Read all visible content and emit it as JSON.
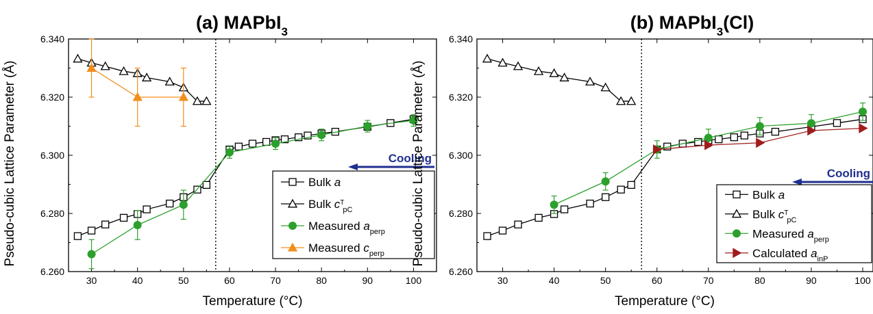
{
  "figure": {
    "panels": [
      {
        "title": "(a) MAPbI",
        "title_sub": "3",
        "title_suffix": "",
        "ylabel": "Pseudo-cubic Lattice Parameter (Å)",
        "xlabel": "Temperature (°C)",
        "cooling_label": "Cooling",
        "legend": [
          {
            "text": "Bulk ",
            "italic": "a",
            "sup": "",
            "sub": ""
          },
          {
            "text": "Bulk ",
            "italic": "c",
            "sup": "T",
            "sub": "pC"
          },
          {
            "text": "Measured ",
            "italic": "a",
            "sup": "",
            "sub": "perp"
          },
          {
            "text": "Measured ",
            "italic": "c",
            "sup": "",
            "sub": "perp"
          }
        ]
      },
      {
        "title": "(b) MAPbI",
        "title_sub": "3",
        "title_suffix": "(Cl)",
        "ylabel": "Pseudo-cubic Lattice Parameter (Å)",
        "xlabel": "Temperature (°C)",
        "cooling_label": "Cooling",
        "legend": [
          {
            "text": "Bulk ",
            "italic": "a",
            "sup": "",
            "sub": ""
          },
          {
            "text": "Bulk ",
            "italic": "c",
            "sup": "T",
            "sub": "pC"
          },
          {
            "text": "Measured ",
            "italic": "a",
            "sup": "",
            "sub": "perp"
          },
          {
            "text": "Calculated ",
            "italic": "a",
            "sup": "",
            "sub": "inP"
          }
        ]
      }
    ]
  },
  "colors": {
    "bulk": "#000000",
    "measured_a": "#2ca02c",
    "measured_c": "#f28e1c",
    "calculated": "#a01c1c",
    "cooling": "#1f2f8f",
    "frame": "#000000"
  },
  "chart_data": [
    {
      "type": "line",
      "xlim": [
        25,
        105
      ],
      "ylim": [
        6.26,
        6.34
      ],
      "xticks": [
        30,
        40,
        50,
        60,
        70,
        80,
        90,
        100
      ],
      "yticks": [
        6.26,
        6.28,
        6.3,
        6.32,
        6.34
      ],
      "ytick_labels": [
        "6.260",
        "6.280",
        "6.300",
        "6.320",
        "6.340"
      ],
      "vline_x": 57,
      "grid": false,
      "legend_position": "bottom-right",
      "series": [
        {
          "name": "Bulk a",
          "marker": "square-open",
          "color": "#000000",
          "x": [
            27,
            30,
            33,
            37,
            40,
            42,
            47,
            50,
            53,
            55,
            60,
            62,
            65,
            68,
            70,
            72,
            75,
            77,
            80,
            83,
            90,
            95,
            100
          ],
          "y": [
            6.2722,
            6.2741,
            6.2762,
            6.2785,
            6.2798,
            6.2814,
            6.2834,
            6.2856,
            6.2882,
            6.2898,
            6.302,
            6.303,
            6.304,
            6.3046,
            6.3052,
            6.3055,
            6.3062,
            6.3068,
            6.3075,
            6.3081,
            6.3098,
            6.3111,
            6.3124
          ]
        },
        {
          "name": "Bulk cTpC",
          "marker": "triangle-open",
          "color": "#000000",
          "x": [
            27,
            30,
            33,
            37,
            40,
            42,
            47,
            50,
            53,
            55
          ],
          "y": [
            6.3332,
            6.3318,
            6.3306,
            6.3289,
            6.3282,
            6.3267,
            6.3253,
            6.3233,
            6.3186,
            6.3186
          ]
        },
        {
          "name": "Measured aperp",
          "marker": "circle-filled",
          "color": "#2ca02c",
          "x": [
            30,
            40,
            50,
            60,
            70,
            80,
            90,
            100
          ],
          "y": [
            6.266,
            6.276,
            6.283,
            6.301,
            6.304,
            6.307,
            6.31,
            6.312
          ],
          "err": [
            0.005,
            0.005,
            0.005,
            0.002,
            0.002,
            0.002,
            0.002,
            0.002
          ]
        },
        {
          "name": "Measured cperp",
          "marker": "triangle-filled",
          "color": "#f28e1c",
          "x": [
            30,
            40,
            50
          ],
          "y": [
            6.33,
            6.32,
            6.32
          ],
          "err": [
            0.01,
            0.01,
            0.01
          ]
        }
      ]
    },
    {
      "type": "line",
      "xlim": [
        25,
        102
      ],
      "ylim": [
        6.26,
        6.34
      ],
      "xticks": [
        30,
        40,
        50,
        60,
        70,
        80,
        90,
        100
      ],
      "yticks": [
        6.26,
        6.28,
        6.3,
        6.32,
        6.34
      ],
      "ytick_labels": [
        "6.260",
        "6.280",
        "6.300",
        "6.320",
        "6.340"
      ],
      "vline_x": 57,
      "grid": false,
      "legend_position": "bottom-right",
      "series": [
        {
          "name": "Bulk a",
          "marker": "square-open",
          "color": "#000000",
          "x": [
            27,
            30,
            33,
            37,
            40,
            42,
            47,
            50,
            53,
            55,
            60,
            62,
            65,
            68,
            70,
            72,
            75,
            77,
            80,
            83,
            90,
            95,
            100
          ],
          "y": [
            6.2722,
            6.2741,
            6.2762,
            6.2785,
            6.2798,
            6.2814,
            6.2834,
            6.2856,
            6.2882,
            6.2898,
            6.302,
            6.303,
            6.304,
            6.3046,
            6.3052,
            6.3055,
            6.3062,
            6.3068,
            6.3075,
            6.3081,
            6.3098,
            6.3111,
            6.3124
          ]
        },
        {
          "name": "Bulk cTpC",
          "marker": "triangle-open",
          "color": "#000000",
          "x": [
            27,
            30,
            33,
            37,
            40,
            42,
            47,
            50,
            53,
            55
          ],
          "y": [
            6.3332,
            6.3318,
            6.3306,
            6.3289,
            6.3282,
            6.3267,
            6.3253,
            6.3233,
            6.3186,
            6.3186
          ]
        },
        {
          "name": "Measured aperp",
          "marker": "circle-filled",
          "color": "#2ca02c",
          "x": [
            40,
            50,
            60,
            70,
            80,
            90,
            100
          ],
          "y": [
            6.283,
            6.291,
            6.302,
            6.306,
            6.31,
            6.311,
            6.315
          ],
          "err": [
            0.003,
            0.003,
            0.003,
            0.003,
            0.003,
            0.003,
            0.003
          ]
        },
        {
          "name": "Calculated ainP",
          "marker": "triangle-right-filled",
          "color": "#a01c1c",
          "x": [
            60,
            70,
            80,
            90,
            100
          ],
          "y": [
            6.302,
            6.3035,
            6.3043,
            6.3085,
            6.3093
          ]
        }
      ]
    }
  ]
}
